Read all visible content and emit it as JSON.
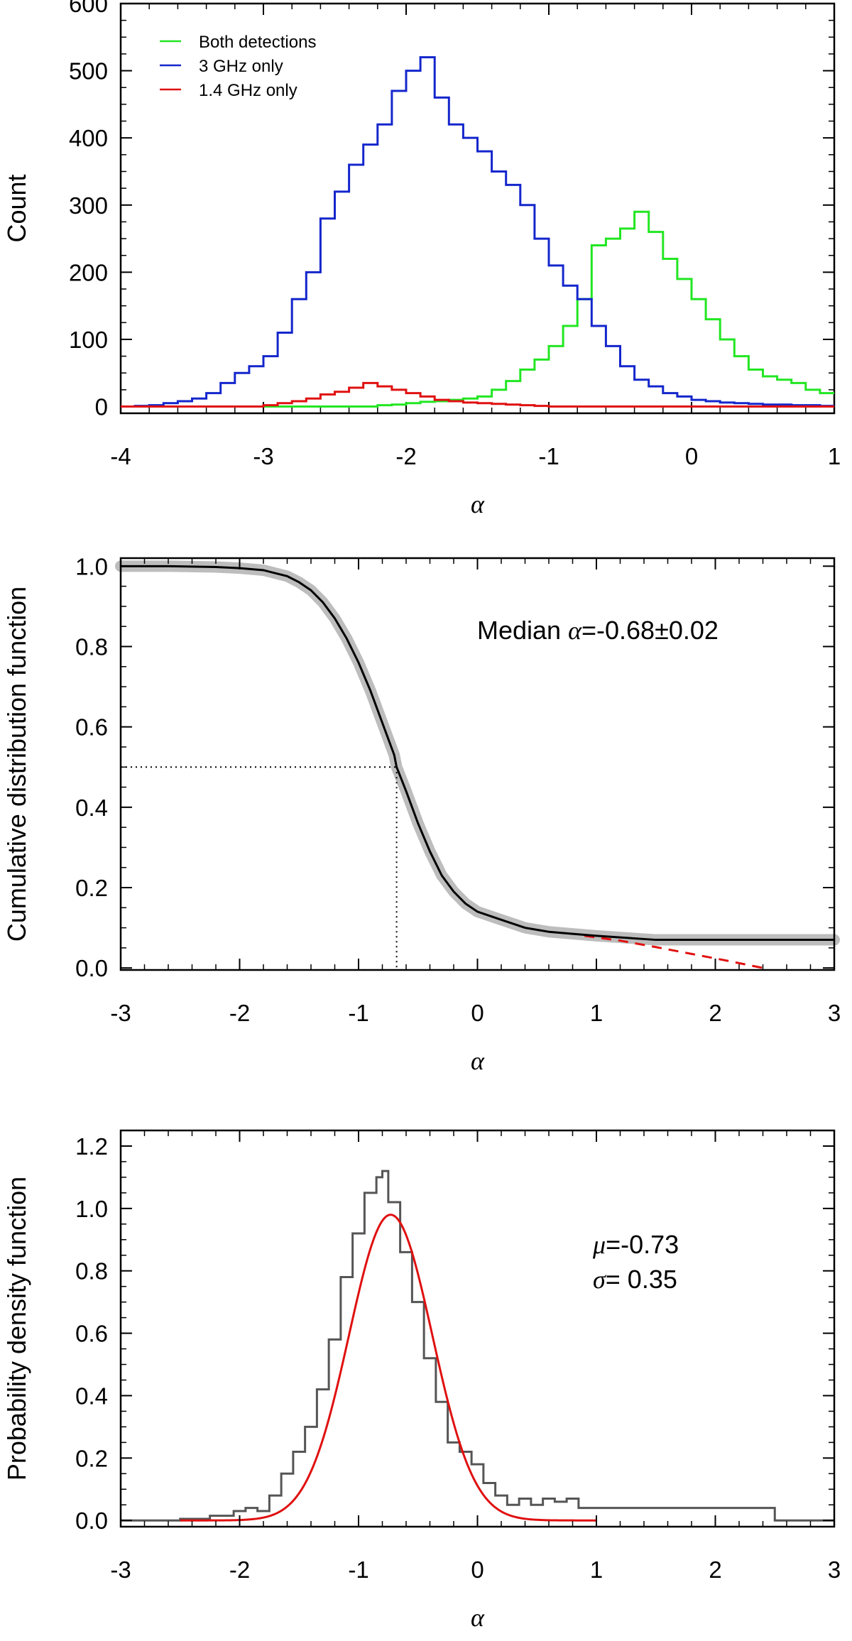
{
  "chart_data": [
    {
      "type": "line",
      "subtype": "step-histogram",
      "xlabel": "α",
      "ylabel": "Count",
      "xlim": [
        -4,
        1
      ],
      "ylim": [
        -10,
        600
      ],
      "xticks": [
        "-4",
        "-3",
        "-2",
        "-1",
        "0",
        "1"
      ],
      "yticks": [
        "0",
        "100",
        "200",
        "300",
        "400",
        "500",
        "600"
      ],
      "legend_position": "top-left",
      "bin_width": 0.1,
      "series": [
        {
          "name": "Both detections",
          "color": "#22e622",
          "x": [
            -4.0,
            -3.9,
            -3.8,
            -3.7,
            -3.6,
            -3.5,
            -3.4,
            -3.3,
            -3.2,
            -3.1,
            -3.0,
            -2.9,
            -2.8,
            -2.7,
            -2.6,
            -2.5,
            -2.4,
            -2.3,
            -2.2,
            -2.1,
            -2.0,
            -1.9,
            -1.8,
            -1.7,
            -1.6,
            -1.5,
            -1.4,
            -1.3,
            -1.2,
            -1.1,
            -1.0,
            -0.9,
            -0.8,
            -0.7,
            -0.6,
            -0.5,
            -0.4,
            -0.3,
            -0.2,
            -0.1,
            0.0,
            0.1,
            0.2,
            0.3,
            0.4,
            0.5,
            0.6,
            0.7,
            0.8,
            0.9
          ],
          "values": [
            0,
            0,
            0,
            0,
            0,
            0,
            0,
            0,
            0,
            0,
            0,
            0,
            0,
            0,
            0,
            0,
            0,
            0,
            2,
            3,
            5,
            7,
            8,
            10,
            12,
            15,
            25,
            38,
            55,
            70,
            90,
            120,
            160,
            240,
            250,
            265,
            290,
            260,
            220,
            190,
            160,
            130,
            100,
            75,
            55,
            45,
            40,
            35,
            25,
            20
          ]
        },
        {
          "name": "3 GHz only",
          "color": "#1426cc",
          "x": [
            -4.0,
            -3.9,
            -3.8,
            -3.7,
            -3.6,
            -3.5,
            -3.4,
            -3.3,
            -3.2,
            -3.1,
            -3.0,
            -2.9,
            -2.8,
            -2.7,
            -2.6,
            -2.5,
            -2.4,
            -2.3,
            -2.2,
            -2.1,
            -2.0,
            -1.9,
            -1.8,
            -1.7,
            -1.6,
            -1.5,
            -1.4,
            -1.3,
            -1.2,
            -1.1,
            -1.0,
            -0.9,
            -0.8,
            -0.7,
            -0.6,
            -0.5,
            -0.4,
            -0.3,
            -0.2,
            -0.1,
            0.0,
            0.1,
            0.2,
            0.3,
            0.4,
            0.5,
            0.6,
            0.7,
            0.8,
            0.9
          ],
          "values": [
            0,
            1,
            2,
            5,
            8,
            12,
            20,
            35,
            50,
            60,
            75,
            110,
            160,
            200,
            280,
            320,
            360,
            390,
            420,
            470,
            500,
            520,
            460,
            420,
            400,
            380,
            350,
            330,
            300,
            250,
            210,
            180,
            160,
            120,
            90,
            60,
            40,
            30,
            20,
            15,
            10,
            8,
            6,
            5,
            4,
            3,
            3,
            2,
            2,
            1
          ]
        },
        {
          "name": "1.4 GHz only",
          "color": "#e01010",
          "x": [
            -4.0,
            -3.9,
            -3.8,
            -3.7,
            -3.6,
            -3.5,
            -3.4,
            -3.3,
            -3.2,
            -3.1,
            -3.0,
            -2.9,
            -2.8,
            -2.7,
            -2.6,
            -2.5,
            -2.4,
            -2.3,
            -2.2,
            -2.1,
            -2.0,
            -1.9,
            -1.8,
            -1.7,
            -1.6,
            -1.5,
            -1.4,
            -1.3,
            -1.2,
            -1.1,
            -1.0,
            -0.9,
            -0.8,
            -0.7,
            -0.6,
            -0.5,
            -0.4,
            -0.3,
            -0.2,
            -0.1,
            0.0,
            0.1,
            0.2,
            0.3,
            0.4,
            0.5,
            0.6,
            0.7,
            0.8,
            0.9
          ],
          "values": [
            0,
            0,
            0,
            0,
            0,
            0,
            0,
            0,
            0,
            0,
            2,
            5,
            8,
            12,
            18,
            22,
            28,
            35,
            30,
            25,
            20,
            15,
            10,
            8,
            6,
            5,
            4,
            3,
            2,
            1,
            0,
            0,
            0,
            0,
            0,
            0,
            0,
            0,
            0,
            0,
            0,
            0,
            0,
            0,
            0,
            0,
            0,
            0,
            0,
            0
          ]
        }
      ]
    },
    {
      "type": "line",
      "xlabel": "α",
      "ylabel": "Cumulative distribution function",
      "xlim": [
        -3,
        3
      ],
      "ylim": [
        -0.005,
        1.02
      ],
      "xticks": [
        "-3",
        "-2",
        "-1",
        "0",
        "1",
        "2",
        "3"
      ],
      "yticks": [
        "0.0",
        "0.2",
        "0.4",
        "0.6",
        "0.8",
        "1.0"
      ],
      "annotation": {
        "prefix": "Median ",
        "symbol": "α",
        "text": "=-0.68±0.02"
      },
      "median": -0.68,
      "series": [
        {
          "name": "CDF",
          "color": "#000000",
          "band_color": "#bdbdbd",
          "x": [
            -3.0,
            -2.6,
            -2.2,
            -2.0,
            -1.8,
            -1.6,
            -1.5,
            -1.4,
            -1.3,
            -1.2,
            -1.1,
            -1.0,
            -0.9,
            -0.8,
            -0.7,
            -0.68,
            -0.6,
            -0.5,
            -0.4,
            -0.3,
            -0.2,
            -0.1,
            0.0,
            0.2,
            0.4,
            0.6,
            0.8,
            1.0,
            1.5,
            2.0,
            2.5,
            3.0
          ],
          "y": [
            1.0,
            1.0,
            0.998,
            0.995,
            0.99,
            0.975,
            0.96,
            0.94,
            0.91,
            0.87,
            0.82,
            0.76,
            0.69,
            0.61,
            0.53,
            0.5,
            0.44,
            0.36,
            0.29,
            0.23,
            0.19,
            0.16,
            0.14,
            0.12,
            0.1,
            0.09,
            0.085,
            0.08,
            0.07,
            0.07,
            0.07,
            0.07
          ]
        },
        {
          "name": "extrapolated tail",
          "color": "#e01010",
          "dash": true,
          "x": [
            0.9,
            1.2,
            1.5,
            1.8,
            2.1,
            2.4
          ],
          "y": [
            0.08,
            0.068,
            0.052,
            0.035,
            0.018,
            0.0
          ]
        }
      ]
    },
    {
      "type": "line",
      "subtype": "histogram-with-gaussian-fit",
      "xlabel": "α",
      "ylabel": "Probability density function",
      "xlim": [
        -3,
        3
      ],
      "ylim": [
        -0.02,
        1.25
      ],
      "xticks": [
        "-3",
        "-2",
        "-1",
        "0",
        "1",
        "2",
        "3"
      ],
      "yticks": [
        "0.0",
        "0.2",
        "0.4",
        "0.6",
        "0.8",
        "1.0",
        "1.2"
      ],
      "fit": {
        "mu": -0.73,
        "sigma": 0.35,
        "amplitude": 0.98
      },
      "annotation": {
        "mu_symbol": "μ",
        "mu_text": "=-0.73",
        "sigma_symbol": "σ",
        "sigma_text": "= 0.35"
      },
      "series": [
        {
          "name": "PDF histogram",
          "color": "#555555",
          "edges": [
            -3.0,
            -2.5,
            -2.25,
            -2.05,
            -1.95,
            -1.85,
            -1.75,
            -1.65,
            -1.55,
            -1.45,
            -1.35,
            -1.25,
            -1.15,
            -1.05,
            -0.95,
            -0.85,
            -0.8,
            -0.75,
            -0.65,
            -0.55,
            -0.45,
            -0.35,
            -0.25,
            -0.15,
            -0.05,
            0.05,
            0.15,
            0.25,
            0.35,
            0.45,
            0.55,
            0.65,
            0.75,
            0.85,
            2.5
          ],
          "values": [
            0,
            0.005,
            0.015,
            0.03,
            0.04,
            0.03,
            0.08,
            0.15,
            0.22,
            0.3,
            0.42,
            0.58,
            0.78,
            0.92,
            1.05,
            1.1,
            1.12,
            1.02,
            0.86,
            0.7,
            0.52,
            0.38,
            0.25,
            0.22,
            0.18,
            0.12,
            0.08,
            0.05,
            0.07,
            0.05,
            0.07,
            0.06,
            0.07,
            0.04
          ]
        },
        {
          "name": "Gaussian fit",
          "color": "#e01010",
          "range": [
            -2.5,
            1.0
          ]
        }
      ]
    }
  ]
}
